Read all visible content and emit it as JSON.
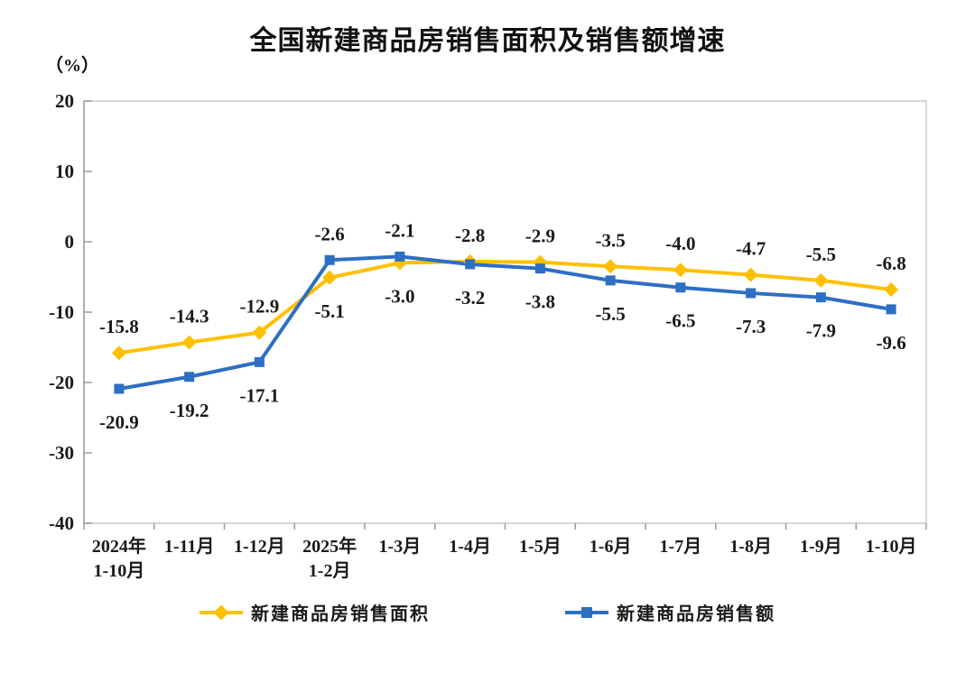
{
  "title": "全国新建商品房销售面积及销售额增速",
  "y_axis_unit": "（%）",
  "chart_data": {
    "type": "line",
    "title": "全国新建商品房销售面积及销售额增速",
    "ylabel": "（%）",
    "xlabel": "",
    "categories": [
      "2024年\n1-10月",
      "1-11月",
      "1-12月",
      "2025年\n1-2月",
      "1-3月",
      "1-4月",
      "1-5月",
      "1-6月",
      "1-7月",
      "1-8月",
      "1-9月",
      "1-10月"
    ],
    "series": [
      {
        "name": "新建商品房销售面积",
        "color": "#FFC000",
        "marker": "diamond",
        "values": [
          -15.8,
          -14.3,
          -12.9,
          -5.1,
          -3.0,
          -2.8,
          -2.9,
          -3.5,
          -4.0,
          -4.7,
          -5.5,
          -6.8
        ]
      },
      {
        "name": "新建商品房销售额",
        "color": "#2D6FC2",
        "marker": "square",
        "values": [
          -20.9,
          -19.2,
          -17.1,
          -2.6,
          -2.1,
          -3.2,
          -3.8,
          -5.5,
          -6.5,
          -7.3,
          -7.9,
          -9.6
        ]
      }
    ],
    "ylim": [
      -40,
      20
    ],
    "y_ticks": [
      20,
      10,
      0,
      -10,
      -20,
      -30,
      -40
    ],
    "decimals": 1,
    "grid": false,
    "legend_position": "bottom",
    "label_color": "#1a1a1a",
    "axis_color": "#9b9b9b",
    "border_color": "#c9c9c9"
  }
}
